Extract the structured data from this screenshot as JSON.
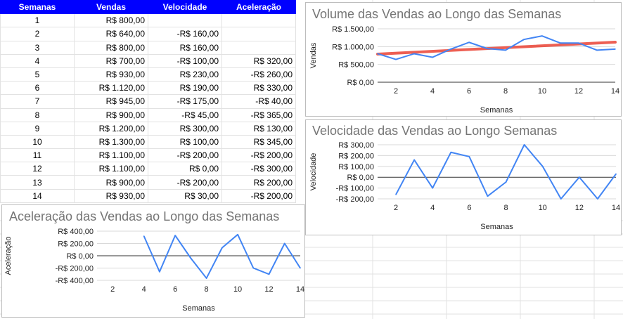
{
  "sheet": {
    "headers": [
      "Semanas",
      "Vendas",
      "Velocidade",
      "Aceleração"
    ],
    "rows": [
      [
        "1",
        "R$ 800,00",
        "",
        ""
      ],
      [
        "2",
        "R$ 640,00",
        "-R$ 160,00",
        ""
      ],
      [
        "3",
        "R$ 800,00",
        "R$ 160,00",
        ""
      ],
      [
        "4",
        "R$ 700,00",
        "-R$ 100,00",
        "R$ 320,00"
      ],
      [
        "5",
        "R$ 930,00",
        "R$ 230,00",
        "-R$ 260,00"
      ],
      [
        "6",
        "R$ 1.120,00",
        "R$ 190,00",
        "R$ 330,00"
      ],
      [
        "7",
        "R$ 945,00",
        "-R$ 175,00",
        "-R$ 40,00"
      ],
      [
        "8",
        "R$ 900,00",
        "-R$ 45,00",
        "-R$ 365,00"
      ],
      [
        "9",
        "R$ 1.200,00",
        "R$ 300,00",
        "R$ 130,00"
      ],
      [
        "10",
        "R$ 1.300,00",
        "R$ 100,00",
        "R$ 345,00"
      ],
      [
        "11",
        "R$ 1.100,00",
        "-R$ 200,00",
        "-R$ 200,00"
      ],
      [
        "12",
        "R$ 1.100,00",
        "R$ 0,00",
        "-R$ 300,00"
      ],
      [
        "13",
        "R$ 900,00",
        "-R$ 200,00",
        "R$ 200,00"
      ],
      [
        "14",
        "R$ 930,00",
        "R$ 30,00",
        "-R$ 200,00"
      ]
    ],
    "header_color": "#0000ff"
  },
  "chart_data": [
    {
      "type": "line",
      "title": "Volume das Vendas ao Longo das Semanas",
      "xlabel": "Semanas",
      "ylabel": "Vendas",
      "x": [
        1,
        2,
        3,
        4,
        5,
        6,
        7,
        8,
        9,
        10,
        11,
        12,
        13,
        14
      ],
      "series": [
        {
          "values": [
            800,
            640,
            800,
            700,
            930,
            1120,
            945,
            900,
            1200,
            1300,
            1100,
            1100,
            900,
            930
          ],
          "color": "#4285f4"
        }
      ],
      "trendline": {
        "from": [
          1,
          790
        ],
        "to": [
          14,
          1125
        ],
        "color": "#ea4335"
      },
      "xlim": [
        1,
        14
      ],
      "ylim": [
        0,
        1500
      ],
      "xticks": [
        2,
        4,
        6,
        8,
        10,
        12,
        14
      ],
      "yticks": [
        0,
        500,
        1000,
        1500
      ],
      "ytick_labels": [
        "R$ 0,00",
        "R$ 500,00",
        "R$ 1.000,00",
        "R$ 1.500,00"
      ],
      "grid": true
    },
    {
      "type": "line",
      "title": "Velocidade das Vendas ao Longo Semanas",
      "xlabel": "Semanas",
      "ylabel": "Velocidade",
      "x": [
        1,
        2,
        3,
        4,
        5,
        6,
        7,
        8,
        9,
        10,
        11,
        12,
        13,
        14
      ],
      "series": [
        {
          "values": [
            null,
            -160,
            160,
            -100,
            230,
            190,
            -175,
            -45,
            300,
            100,
            -200,
            0,
            -200,
            30
          ],
          "color": "#4285f4"
        }
      ],
      "xlim": [
        1,
        14
      ],
      "ylim": [
        -200,
        300
      ],
      "xticks": [
        2,
        4,
        6,
        8,
        10,
        12,
        14
      ],
      "yticks": [
        -200,
        -100,
        0,
        100,
        200,
        300
      ],
      "ytick_labels": [
        "-R$ 200,00",
        "-R$ 100,00",
        "R$ 0,00",
        "R$ 100,00",
        "R$ 200,00",
        "R$ 300,00"
      ],
      "grid": true
    },
    {
      "type": "line",
      "title": "Aceleração das Vendas ao Longo das Semanas",
      "xlabel": "Semanas",
      "ylabel": "Aceleração",
      "x": [
        1,
        2,
        3,
        4,
        5,
        6,
        7,
        8,
        9,
        10,
        11,
        12,
        13,
        14
      ],
      "series": [
        {
          "values": [
            null,
            null,
            null,
            320,
            -260,
            330,
            -40,
            -365,
            130,
            345,
            -200,
            -300,
            200,
            -200
          ],
          "color": "#4285f4"
        }
      ],
      "xlim": [
        1,
        14
      ],
      "ylim": [
        -400,
        400
      ],
      "xticks": [
        2,
        4,
        6,
        8,
        10,
        12,
        14
      ],
      "yticks": [
        -400,
        -200,
        0,
        200,
        400
      ],
      "ytick_labels": [
        "-R$ 400,00",
        "-R$ 200,00",
        "R$ 0,00",
        "R$ 200,00",
        "R$ 400,00"
      ],
      "grid": true
    }
  ]
}
